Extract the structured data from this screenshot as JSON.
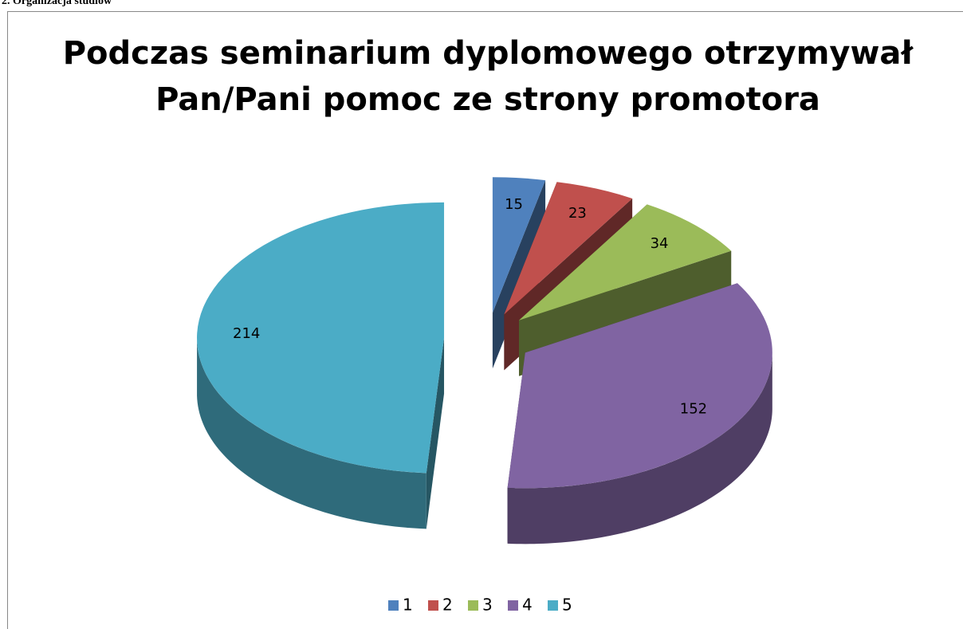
{
  "section_heading": "2. Organizacja studiów",
  "chart_data": {
    "type": "pie",
    "title": [
      "Podczas seminarium dyplomowego otrzymywał",
      "Pan/Pani pomoc ze strony promotora"
    ],
    "categories": [
      "1",
      "2",
      "3",
      "4",
      "5"
    ],
    "values": [
      15,
      23,
      34,
      152,
      214
    ],
    "colors": [
      "#4f81bd",
      "#c0504d",
      "#9bbb59",
      "#8064a2",
      "#4bacc6"
    ],
    "legend": "bottom"
  }
}
